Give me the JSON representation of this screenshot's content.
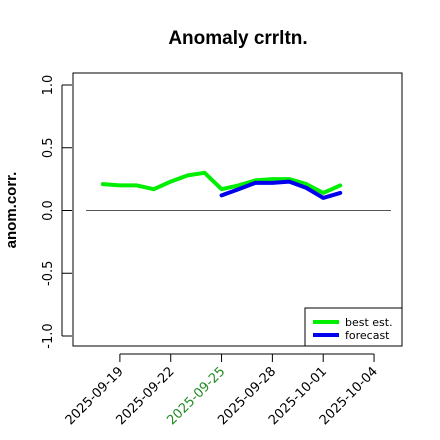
{
  "chart_data": {
    "type": "line",
    "title": "Anomaly crrltn.",
    "ylabel": "anom.corr.",
    "xlabel": "",
    "ylim": [
      -1.0,
      1.0
    ],
    "yticks": [
      "-1.0",
      "-0.5",
      "0.0",
      "0.5",
      "1.0"
    ],
    "ytick_values": [
      -1.0,
      -0.5,
      0.0,
      0.5,
      1.0
    ],
    "x_dates": [
      "2025-09-17",
      "2025-09-18",
      "2025-09-19",
      "2025-09-20",
      "2025-09-21",
      "2025-09-22",
      "2025-09-23",
      "2025-09-24",
      "2025-09-25",
      "2025-09-26",
      "2025-09-27",
      "2025-09-28",
      "2025-09-29",
      "2025-09-30",
      "2025-10-01",
      "2025-10-02",
      "2025-10-03",
      "2025-10-04",
      "2025-10-05"
    ],
    "xticks": [
      {
        "date": "2025-09-19",
        "label": "2025-09-19",
        "color": "#000000"
      },
      {
        "date": "2025-09-22",
        "label": "2025-09-22",
        "color": "#000000"
      },
      {
        "date": "2025-09-25",
        "label": "2025-09-25",
        "color": "#228B22"
      },
      {
        "date": "2025-09-28",
        "label": "2025-09-28",
        "color": "#000000"
      },
      {
        "date": "2025-10-01",
        "label": "2025-10-01",
        "color": "#000000"
      },
      {
        "date": "2025-10-04",
        "label": "2025-10-04",
        "color": "#000000"
      }
    ],
    "zero_line": 0.0,
    "series": [
      {
        "name": "best est.",
        "color": "#00ee00",
        "x": [
          "2025-09-18",
          "2025-09-19",
          "2025-09-20",
          "2025-09-21",
          "2025-09-22",
          "2025-09-23",
          "2025-09-24",
          "2025-09-25",
          "2025-09-26",
          "2025-09-27",
          "2025-09-28",
          "2025-09-29",
          "2025-09-30",
          "2025-10-01",
          "2025-10-02"
        ],
        "values": [
          0.21,
          0.2,
          0.2,
          0.17,
          0.23,
          0.28,
          0.3,
          0.17,
          0.2,
          0.24,
          0.25,
          0.25,
          0.21,
          0.14,
          0.2
        ]
      },
      {
        "name": "forecast",
        "color": "#0000ee",
        "x": [
          "2025-09-25",
          "2025-09-26",
          "2025-09-27",
          "2025-09-28",
          "2025-09-29",
          "2025-09-30",
          "2025-10-01",
          "2025-10-02"
        ],
        "values": [
          0.12,
          0.17,
          0.22,
          0.22,
          0.23,
          0.18,
          0.1,
          0.14
        ]
      }
    ],
    "legend_placement": "bottom-right",
    "grid": false
  }
}
